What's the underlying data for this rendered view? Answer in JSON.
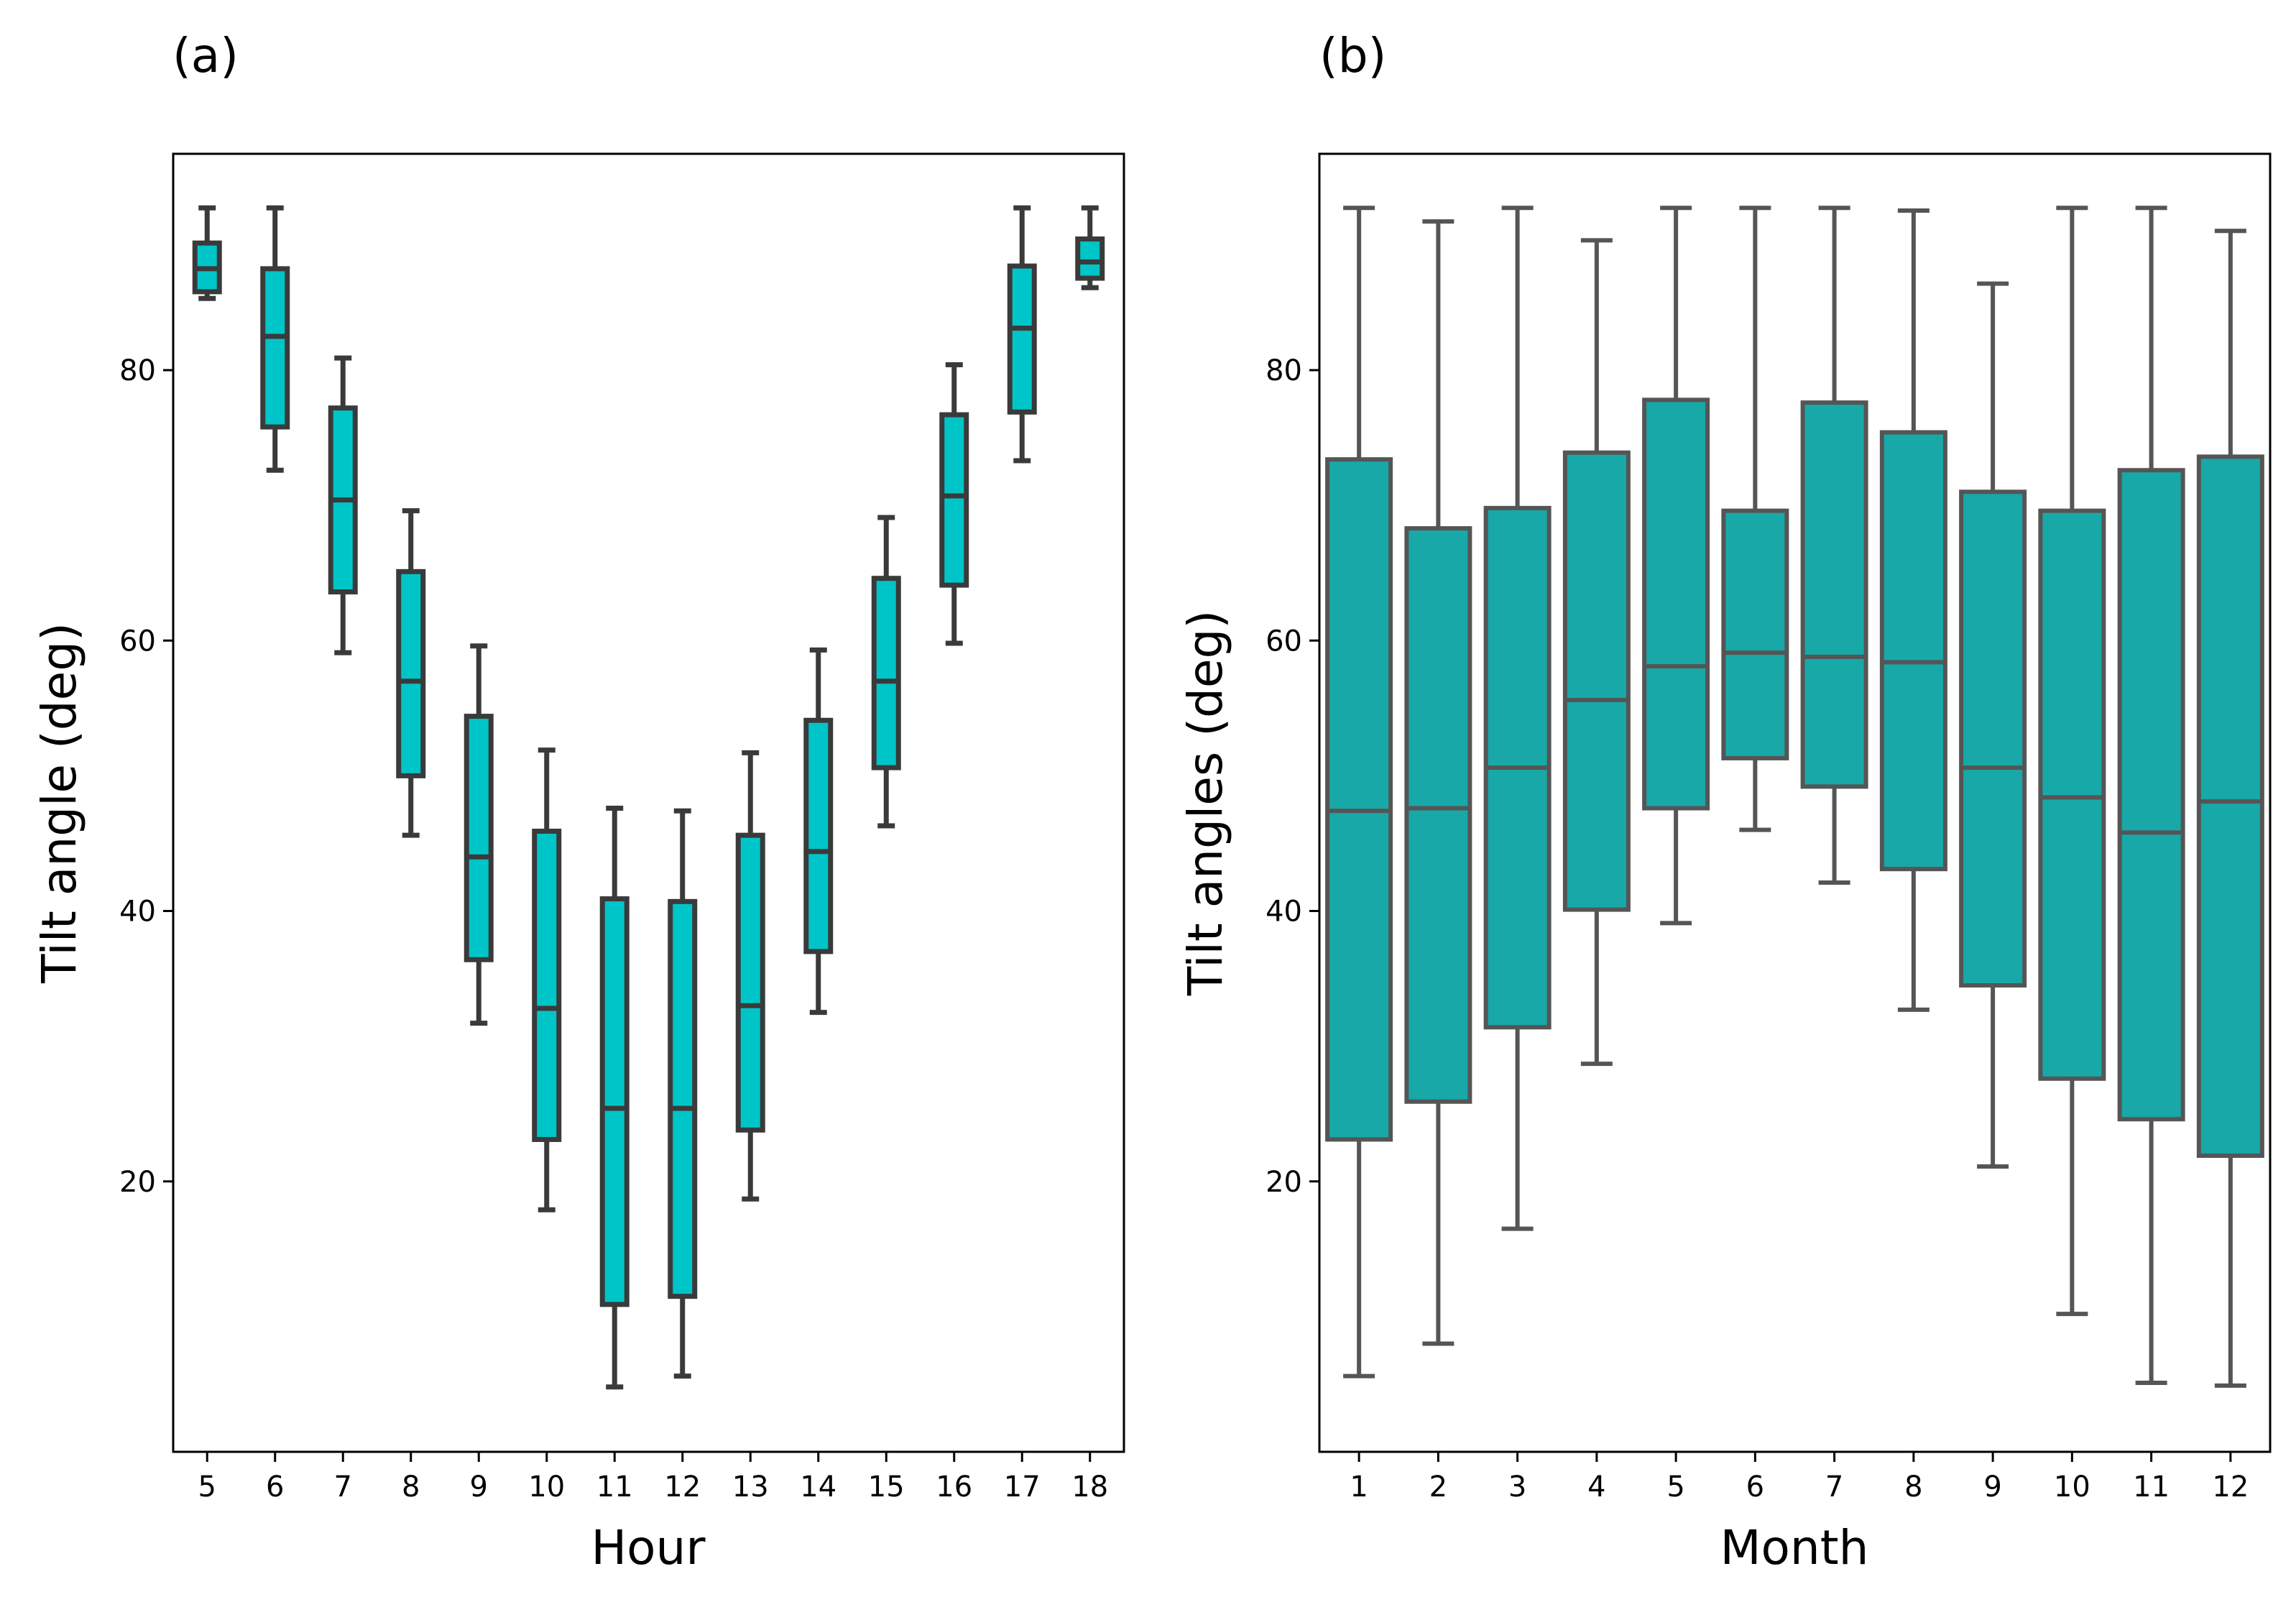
{
  "chart_data": [
    {
      "type": "boxplot",
      "panel_label": "(a)",
      "xlabel": "Hour",
      "ylabel": "Tilt angle (deg)",
      "ylim": [
        0,
        96
      ],
      "yticks": [
        20,
        40,
        60,
        80
      ],
      "box_color": "#00c5c8",
      "edge_color": "#3a3a3a",
      "categories": [
        "5",
        "6",
        "7",
        "8",
        "9",
        "10",
        "11",
        "12",
        "13",
        "14",
        "15",
        "16",
        "17",
        "18"
      ],
      "boxes": [
        {
          "whislo": 85.3,
          "q1": 85.8,
          "med": 87.5,
          "q3": 89.4,
          "whishi": 92.0
        },
        {
          "whislo": 72.6,
          "q1": 75.8,
          "med": 82.5,
          "q3": 87.5,
          "whishi": 92.0
        },
        {
          "whislo": 59.1,
          "q1": 63.6,
          "med": 70.4,
          "q3": 77.2,
          "whishi": 80.9
        },
        {
          "whislo": 45.6,
          "q1": 50.0,
          "med": 57.0,
          "q3": 65.1,
          "whishi": 69.6
        },
        {
          "whislo": 31.7,
          "q1": 36.4,
          "med": 44.0,
          "q3": 54.4,
          "whishi": 59.6
        },
        {
          "whislo": 17.9,
          "q1": 23.1,
          "med": 32.8,
          "q3": 45.9,
          "whishi": 51.9
        },
        {
          "whislo": 4.8,
          "q1": 10.9,
          "med": 25.4,
          "q3": 40.9,
          "whishi": 47.6
        },
        {
          "whislo": 5.6,
          "q1": 11.5,
          "med": 25.4,
          "q3": 40.7,
          "whishi": 47.4
        },
        {
          "whislo": 18.7,
          "q1": 23.8,
          "med": 33.0,
          "q3": 45.6,
          "whishi": 51.7
        },
        {
          "whislo": 32.5,
          "q1": 37.0,
          "med": 44.4,
          "q3": 54.1,
          "whishi": 59.3
        },
        {
          "whislo": 46.3,
          "q1": 50.6,
          "med": 57.0,
          "q3": 64.6,
          "whishi": 69.1
        },
        {
          "whislo": 59.8,
          "q1": 64.1,
          "med": 70.7,
          "q3": 76.7,
          "whishi": 80.4
        },
        {
          "whislo": 73.3,
          "q1": 76.9,
          "med": 83.1,
          "q3": 87.7,
          "whishi": 92.0
        },
        {
          "whislo": 86.1,
          "q1": 86.8,
          "med": 88.0,
          "q3": 89.7,
          "whishi": 92.0
        }
      ]
    },
    {
      "type": "boxplot",
      "panel_label": "(b)",
      "xlabel": "Month",
      "ylabel": "Tilt angles (deg)",
      "ylim": [
        0,
        96
      ],
      "yticks": [
        20,
        40,
        60,
        80
      ],
      "box_color": "#18a8a8",
      "edge_color": "#555555",
      "categories": [
        "1",
        "2",
        "3",
        "4",
        "5",
        "6",
        "7",
        "8",
        "9",
        "10",
        "11",
        "12"
      ],
      "boxes": [
        {
          "whislo": 5.6,
          "q1": 23.1,
          "med": 47.4,
          "q3": 73.4,
          "whishi": 92.0
        },
        {
          "whislo": 8.0,
          "q1": 25.9,
          "med": 47.6,
          "q3": 68.3,
          "whishi": 91.0
        },
        {
          "whislo": 16.5,
          "q1": 31.4,
          "med": 50.6,
          "q3": 69.8,
          "whishi": 92.0
        },
        {
          "whislo": 28.7,
          "q1": 40.1,
          "med": 55.6,
          "q3": 73.9,
          "whishi": 89.6
        },
        {
          "whislo": 39.1,
          "q1": 47.6,
          "med": 58.1,
          "q3": 77.8,
          "whishi": 92.0
        },
        {
          "whislo": 46.0,
          "q1": 51.3,
          "med": 59.1,
          "q3": 69.6,
          "whishi": 92.0
        },
        {
          "whislo": 42.1,
          "q1": 49.2,
          "med": 58.8,
          "q3": 77.6,
          "whishi": 92.0
        },
        {
          "whislo": 32.7,
          "q1": 43.1,
          "med": 58.4,
          "q3": 75.4,
          "whishi": 91.8
        },
        {
          "whislo": 21.1,
          "q1": 34.5,
          "med": 50.6,
          "q3": 71.0,
          "whishi": 86.4
        },
        {
          "whislo": 10.2,
          "q1": 27.6,
          "med": 48.4,
          "q3": 69.6,
          "whishi": 92.0
        },
        {
          "whislo": 5.1,
          "q1": 24.6,
          "med": 45.8,
          "q3": 72.6,
          "whishi": 92.0
        },
        {
          "whislo": 4.9,
          "q1": 21.9,
          "med": 48.1,
          "q3": 73.6,
          "whishi": 90.3
        }
      ]
    }
  ]
}
